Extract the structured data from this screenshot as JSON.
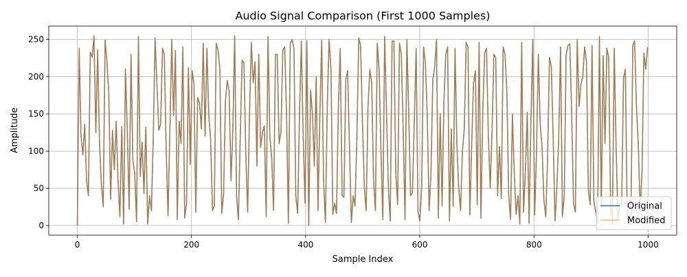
{
  "colors": {
    "original": "#1f77b4",
    "modified": "#ff7f0e",
    "grid": "#b0b0b0",
    "axis": "#000000"
  },
  "chart_data": {
    "type": "line",
    "title": "Audio Signal Comparison (First 1000 Samples)",
    "xlabel": "Sample Index",
    "ylabel": "Amplitude",
    "xlim": [
      -50,
      1050
    ],
    "ylim": [
      -13,
      268
    ],
    "xticks": [
      0,
      200,
      400,
      600,
      800,
      1000
    ],
    "yticks": [
      0,
      50,
      100,
      150,
      200,
      250
    ],
    "grid": true,
    "legend_position": "bottom-right",
    "x_range": [
      0,
      999
    ],
    "series": [
      {
        "name": "Original",
        "color": "#1f77b4",
        "alpha": 1.0,
        "envelope": [
          0,
          238,
          120,
          95,
          136,
          60,
          40,
          233,
          226,
          255,
          125,
          236,
          110,
          55,
          25,
          249,
          220,
          178,
          35,
          128,
          75,
          140,
          60,
          12,
          133,
          2,
          210,
          128,
          22,
          230,
          88,
          70,
          5,
          254,
          66,
          112,
          43,
          132,
          2,
          40,
          20,
          115,
          252,
          190,
          128,
          136,
          238,
          230,
          100,
          13,
          128,
          250,
          148,
          235,
          8,
          140,
          110,
          240,
          10,
          30,
          212,
          82,
          208,
          190,
          18,
          172,
          164,
          130,
          245,
          120,
          238,
          148,
          116,
          20,
          26,
          245,
          236,
          210,
          16,
          42,
          168,
          195,
          180,
          60,
          128,
          255,
          40,
          8,
          118,
          222,
          218,
          96,
          18,
          150,
          246,
          192,
          220,
          80,
          230,
          105,
          125,
          134,
          12,
          254,
          120,
          90,
          20,
          230,
          230,
          110,
          126,
          236,
          240,
          150,
          3,
          244,
          250,
          238,
          40,
          16,
          150,
          248,
          118,
          30,
          248,
          0,
          182,
          150,
          80,
          200,
          20,
          150,
          249,
          60,
          4,
          160,
          250,
          210,
          15,
          30,
          16,
          160,
          238,
          40,
          38,
          196,
          208,
          105,
          4,
          40,
          26,
          120,
          252,
          242,
          140,
          52,
          20,
          160,
          210,
          192,
          60,
          20,
          245,
          210,
          100,
          8,
          254,
          152,
          50,
          6,
          248,
          248,
          70,
          28,
          245,
          230,
          130,
          8,
          250,
          150,
          40,
          44,
          140,
          238,
          18,
          6,
          52,
          240,
          218,
          148,
          20,
          68,
          196,
          212,
          250,
          10,
          150,
          26,
          166,
          230,
          240,
          6,
          130,
          26,
          238,
          110,
          50,
          20,
          100,
          130,
          246,
          240,
          14,
          108,
          192,
          208,
          28,
          246,
          10,
          154,
          232,
          238,
          120,
          50,
          128,
          230,
          226,
          40,
          106,
          36,
          240,
          230,
          180,
          40,
          8,
          150,
          70,
          15,
          40,
          2,
          246,
          18,
          72,
          152,
          3,
          140,
          250,
          14,
          98,
          230,
          136,
          106,
          34,
          12,
          90,
          226,
          214,
          120,
          6,
          50,
          118,
          240,
          12,
          40,
          230,
          242,
          244,
          150,
          30,
          18,
          250,
          160,
          190,
          200,
          240,
          220,
          48,
          28,
          242,
          32,
          18,
          2,
          254,
          24,
          228,
          110,
          238,
          226,
          30,
          2,
          238,
          104,
          10,
          28,
          26,
          198,
          210,
          12,
          2,
          4,
          242,
          248,
          160,
          108,
          20,
          72,
          232,
          210,
          240
        ]
      },
      {
        "name": "Modified",
        "color": "#ff7f0e",
        "alpha": 0.6
      }
    ]
  }
}
